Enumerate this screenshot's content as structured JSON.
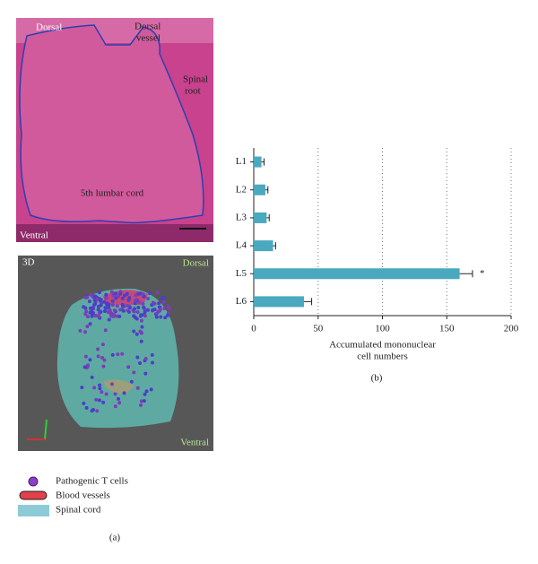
{
  "panel_a": {
    "histology": {
      "dorsal": "Dorsal",
      "dorsal_vessel": [
        "Dorsal",
        "vessel"
      ],
      "spinal_root": [
        "Spinal",
        "root"
      ],
      "cord": "5th lumbar cord",
      "ventral": "Ventral"
    },
    "render3d": {
      "tag": "3D",
      "dorsal": "Dorsal",
      "ventral": "Ventral"
    },
    "legend": [
      "Pathogenic T cells",
      "Blood vessels",
      "Spinal cord"
    ],
    "caption": "(a)"
  },
  "chart_data": {
    "type": "hbar",
    "caption": "(b)",
    "categories": [
      "L1",
      "L2",
      "L3",
      "L4",
      "L5",
      "L6"
    ],
    "values": [
      6,
      9,
      10,
      15,
      160,
      39
    ],
    "errors": [
      2,
      2,
      2,
      2,
      10,
      6
    ],
    "significance_labels": [
      null,
      null,
      null,
      null,
      "*",
      null
    ],
    "color": "#4aa8bf",
    "xlim": [
      0,
      200
    ],
    "xticks": [
      0,
      50,
      100,
      150,
      200
    ],
    "grid": true,
    "xlabel": [
      "Accumulated mononuclear",
      "cell numbers"
    ]
  }
}
